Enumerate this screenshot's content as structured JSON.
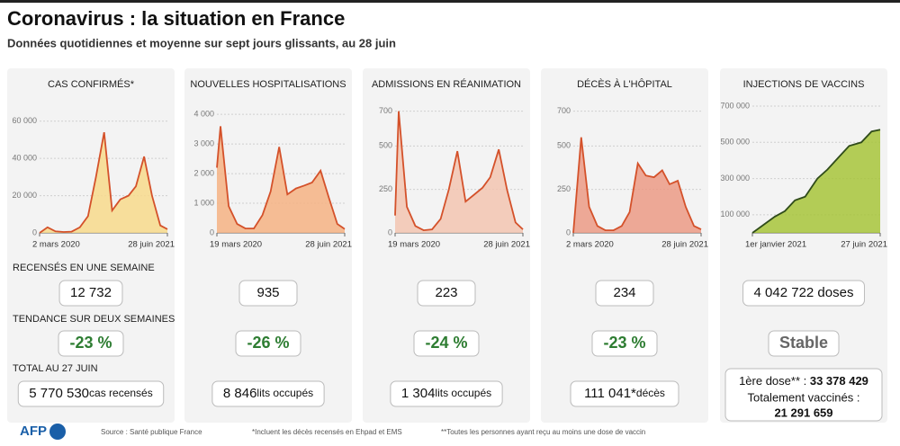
{
  "header": {
    "title": "Coronavirus : la situation en France",
    "subtitle": "Données quotidiennes et moyenne sur sept jours glissants, au 28 juin"
  },
  "chart_data": [
    {
      "type": "area",
      "title": "CAS CONFIRMÉS*",
      "color": "#d4512a",
      "fill": "#f7d98b",
      "x": [
        "2020-03-02",
        "2020-04-01",
        "2020-05-01",
        "2020-06-01",
        "2020-07-01",
        "2020-08-01",
        "2020-09-01",
        "2020-10-01",
        "2020-11-01",
        "2020-12-01",
        "2021-01-01",
        "2021-02-01",
        "2021-03-01",
        "2021-04-01",
        "2021-05-01",
        "2021-06-01",
        "2021-06-28"
      ],
      "values": [
        0,
        3000,
        800,
        500,
        700,
        3000,
        9000,
        30000,
        54000,
        12000,
        18000,
        20000,
        25000,
        41000,
        20000,
        4000,
        2000
      ],
      "xlim": [
        "2020-03-02",
        "2021-06-28"
      ],
      "ylim": [
        0,
        70000
      ],
      "yticks": [
        0,
        {
          "value": 20000,
          "label": "20 000"
        },
        {
          "value": 40000,
          "label": "40 000"
        },
        {
          "value": 60000,
          "label": "60 000"
        }
      ],
      "xticks": [
        {
          "value": "2020-03-02",
          "label": "2 mars 2020"
        },
        {
          "value": "2021-06-28",
          "label": "28 juin 2021"
        }
      ]
    },
    {
      "type": "area",
      "title": "NOUVELLES HOSPITALISATIONS",
      "color": "#d4512a",
      "fill": "#f4b183",
      "x": [
        "2020-03-19",
        "2020-04-01",
        "2020-05-01",
        "2020-06-01",
        "2020-07-01",
        "2020-08-01",
        "2020-09-01",
        "2020-10-01",
        "2020-11-01",
        "2020-12-01",
        "2021-01-01",
        "2021-02-01",
        "2021-03-01",
        "2021-04-01",
        "2021-05-01",
        "2021-06-01",
        "2021-06-28"
      ],
      "values": [
        2200,
        3600,
        900,
        300,
        150,
        150,
        600,
        1400,
        2900,
        1300,
        1500,
        1600,
        1700,
        2100,
        1200,
        300,
        130
      ],
      "xlim": [
        "2020-03-19",
        "2021-06-28"
      ],
      "ylim": [
        0,
        4400
      ],
      "yticks": [
        0,
        {
          "value": 1000,
          "label": "1 000"
        },
        {
          "value": 2000,
          "label": "2 000"
        },
        {
          "value": 3000,
          "label": "3 000"
        },
        {
          "value": 4000,
          "label": "4 000"
        }
      ],
      "xticks": [
        {
          "value": "2020-03-19",
          "label": "19 mars 2020"
        },
        {
          "value": "2021-06-28",
          "label": "28 juin 2021"
        }
      ]
    },
    {
      "type": "area",
      "title": "ADMISSIONS EN RÉANIMATION",
      "color": "#d4512a",
      "fill": "#f2c4b0",
      "x": [
        "2020-03-19",
        "2020-04-01",
        "2020-05-01",
        "2020-06-01",
        "2020-07-01",
        "2020-08-01",
        "2020-09-01",
        "2020-10-01",
        "2020-11-01",
        "2020-12-01",
        "2021-01-01",
        "2021-02-01",
        "2021-03-01",
        "2021-04-01",
        "2021-05-01",
        "2021-06-01",
        "2021-06-28"
      ],
      "values": [
        100,
        700,
        150,
        40,
        15,
        20,
        80,
        250,
        470,
        180,
        220,
        260,
        320,
        480,
        250,
        60,
        20
      ],
      "xlim": [
        "2020-03-19",
        "2021-06-28"
      ],
      "ylim": [
        0,
        750
      ],
      "yticks": [
        0,
        250,
        500,
        700
      ],
      "xticks": [
        {
          "value": "2020-03-19",
          "label": "19 mars 2020"
        },
        {
          "value": "2021-06-28",
          "label": "28 juin 2021"
        }
      ]
    },
    {
      "type": "area",
      "title": "DÉCÈS À L'HÔPITAL",
      "color": "#d4512a",
      "fill": "#eb9a85",
      "x": [
        "2020-03-02",
        "2020-04-01",
        "2020-05-01",
        "2020-06-01",
        "2020-07-01",
        "2020-08-01",
        "2020-09-01",
        "2020-10-01",
        "2020-11-01",
        "2020-12-01",
        "2021-01-01",
        "2021-02-01",
        "2021-03-01",
        "2021-04-01",
        "2021-05-01",
        "2021-06-01",
        "2021-06-28"
      ],
      "values": [
        0,
        550,
        150,
        40,
        15,
        15,
        40,
        120,
        400,
        330,
        320,
        360,
        280,
        300,
        150,
        40,
        20
      ],
      "xlim": [
        "2020-03-02",
        "2021-06-28"
      ],
      "ylim": [
        0,
        750
      ],
      "yticks": [
        0,
        250,
        500,
        700
      ],
      "xticks": [
        {
          "value": "2020-03-02",
          "label": "2 mars 2020"
        },
        {
          "value": "2021-06-28",
          "label": "28 juin 2021"
        }
      ]
    },
    {
      "type": "area",
      "title": "INJECTIONS DE VACCINS",
      "color": "#2f4b1a",
      "fill": "#a7c43a",
      "x": [
        "2021-01-01",
        "2021-01-15",
        "2021-02-01",
        "2021-02-15",
        "2021-03-01",
        "2021-03-15",
        "2021-04-01",
        "2021-04-15",
        "2021-05-01",
        "2021-05-15",
        "2021-06-01",
        "2021-06-15",
        "2021-06-27"
      ],
      "values": [
        0,
        40000,
        90000,
        120000,
        180000,
        200000,
        300000,
        350000,
        420000,
        480000,
        500000,
        560000,
        570000
      ],
      "xlim": [
        "2021-01-01",
        "2021-06-27"
      ],
      "ylim": [
        0,
        720000
      ],
      "yticks": [
        {
          "value": 100000,
          "label": "100 000"
        },
        {
          "value": 300000,
          "label": "300 000"
        },
        {
          "value": 500000,
          "label": "500 000"
        },
        {
          "value": 700000,
          "label": "700 000"
        }
      ],
      "xticks": [
        {
          "value": "2021-01-01",
          "label": "1er janvier 2021"
        },
        {
          "value": "2021-06-27",
          "label": "27 juin 2021"
        }
      ]
    }
  ],
  "stats": {
    "labels": [
      "RECENSÉS EN UNE SEMAINE",
      "TENDANCE SUR DEUX SEMAINES",
      "TOTAL AU 27 JUIN"
    ],
    "panels": [
      {
        "week": "12 732",
        "trend": "-23 %",
        "total": "5 770 530",
        "total_unit": "cas recensés"
      },
      {
        "week": "935",
        "trend": "-26 %",
        "total": "8 846",
        "total_unit": "lits occupés"
      },
      {
        "week": "223",
        "trend": "-24 %",
        "total": "1 304",
        "total_unit": "lits occupés"
      },
      {
        "week": "234",
        "trend": "-23 %",
        "total": "111 041*",
        "total_unit": "décès"
      },
      {
        "week": "4 042 722 doses",
        "trend": "Stable",
        "first_dose_label": "1ère dose** : ",
        "first_dose": "33 378 429",
        "full_label": "Totalement vaccinés :",
        "full": "21 291 659"
      }
    ]
  },
  "footer": {
    "logo": "AFP",
    "source": "Source : Santé publique France",
    "note1": "*Incluent les décès recensés en Ehpad et EMS",
    "note2": "**Toutes les personnes ayant reçu au moins une dose de vaccin"
  }
}
